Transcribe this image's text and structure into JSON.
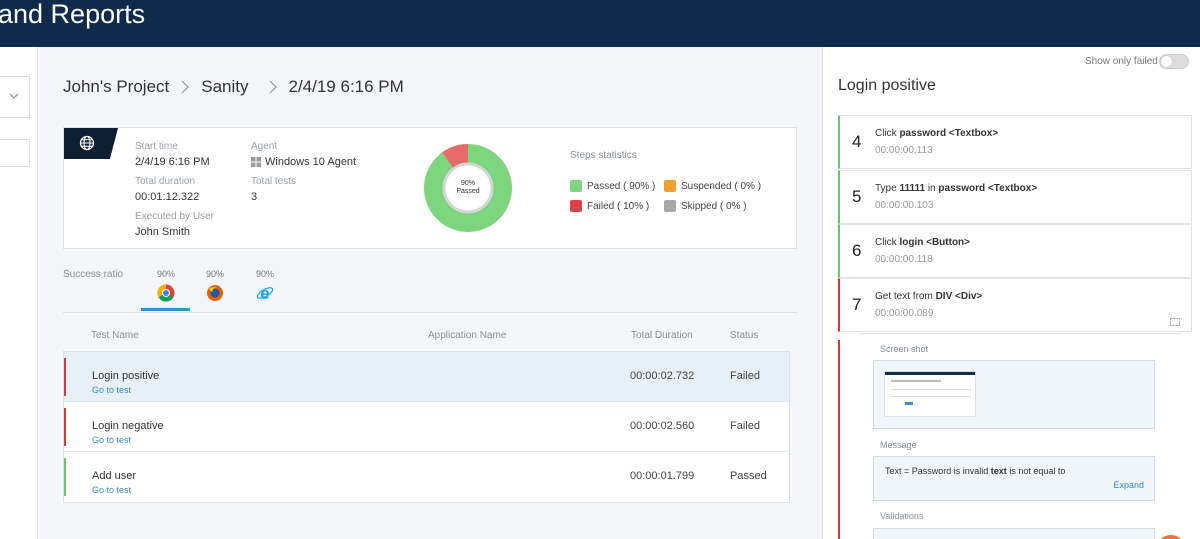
{
  "header": {
    "title": "and Reports"
  },
  "breadcrumb": {
    "project": "John's Project",
    "suite": "Sanity",
    "run": "2/4/19 6:16 PM"
  },
  "summary": {
    "start_time_label": "Start time",
    "start_time": "2/4/19 6:16 PM",
    "duration_label": "Total duration",
    "duration": "00:01:12.322",
    "executed_by_label": "Executed by User",
    "executed_by": "John Smith",
    "agent_label": "Agent",
    "agent": "Windows 10 Agent",
    "total_tests_label": "Total tests",
    "total_tests": "3",
    "donut_pct": "90%",
    "donut_caption": "Passed",
    "passed_fraction": 0.9
  },
  "steps_statistics": {
    "title": "Steps statistics",
    "passed": "Passed ( 90% )",
    "failed": "Failed ( 10% )",
    "suspended": "Suspended ( 0% )",
    "skipped": "Skipped ( 0% )",
    "colors": {
      "passed": "#7dd67d",
      "failed": "#e0404a",
      "suspended": "#f0a030",
      "skipped": "#a8a8a8"
    }
  },
  "browsers": {
    "label": "Success ratio",
    "items": [
      {
        "name": "chrome-icon",
        "pct": "90%"
      },
      {
        "name": "firefox-icon",
        "pct": "90%"
      },
      {
        "name": "ie-icon",
        "pct": "90%"
      }
    ]
  },
  "table": {
    "headers": {
      "test_name": "Test Name",
      "app_name": "Application Name",
      "duration": "Total Duration",
      "status": "Status"
    },
    "go_label": "Go to test",
    "rows": [
      {
        "name": "Login positive",
        "duration": "00:00:02.732",
        "status": "Failed"
      },
      {
        "name": "Login negative",
        "duration": "00:00:02.560",
        "status": "Failed"
      },
      {
        "name": "Add user",
        "duration": "00:00:01.799",
        "status": "Passed"
      }
    ]
  },
  "right": {
    "toggle_label": "Show only failed",
    "test_title": "Login positive",
    "steps": [
      {
        "num": "4",
        "pre": "Click ",
        "b1": "password <Textbox>",
        "mid": "",
        "b2": "",
        "time": "00:00:00.113"
      },
      {
        "num": "5",
        "pre": "Type ",
        "b1": "11111",
        "mid": " in ",
        "b2": "password <Textbox>",
        "time": "00:00:00.103"
      },
      {
        "num": "6",
        "pre": "Click ",
        "b1": "login <Button>",
        "mid": "",
        "b2": "",
        "time": "00:00:00.118"
      },
      {
        "num": "7",
        "pre": "Get text from ",
        "b1": "DIV <Div>",
        "mid": "",
        "b2": "",
        "time": "00:00:00.089"
      }
    ],
    "screenshot_label": "Screen shot",
    "message_label": "Message",
    "message_pre": "Text = Password is invalid ",
    "message_bold": "text",
    "message_post": " is not equal to",
    "expand_label": "Expand",
    "validations_label": "Validations"
  }
}
